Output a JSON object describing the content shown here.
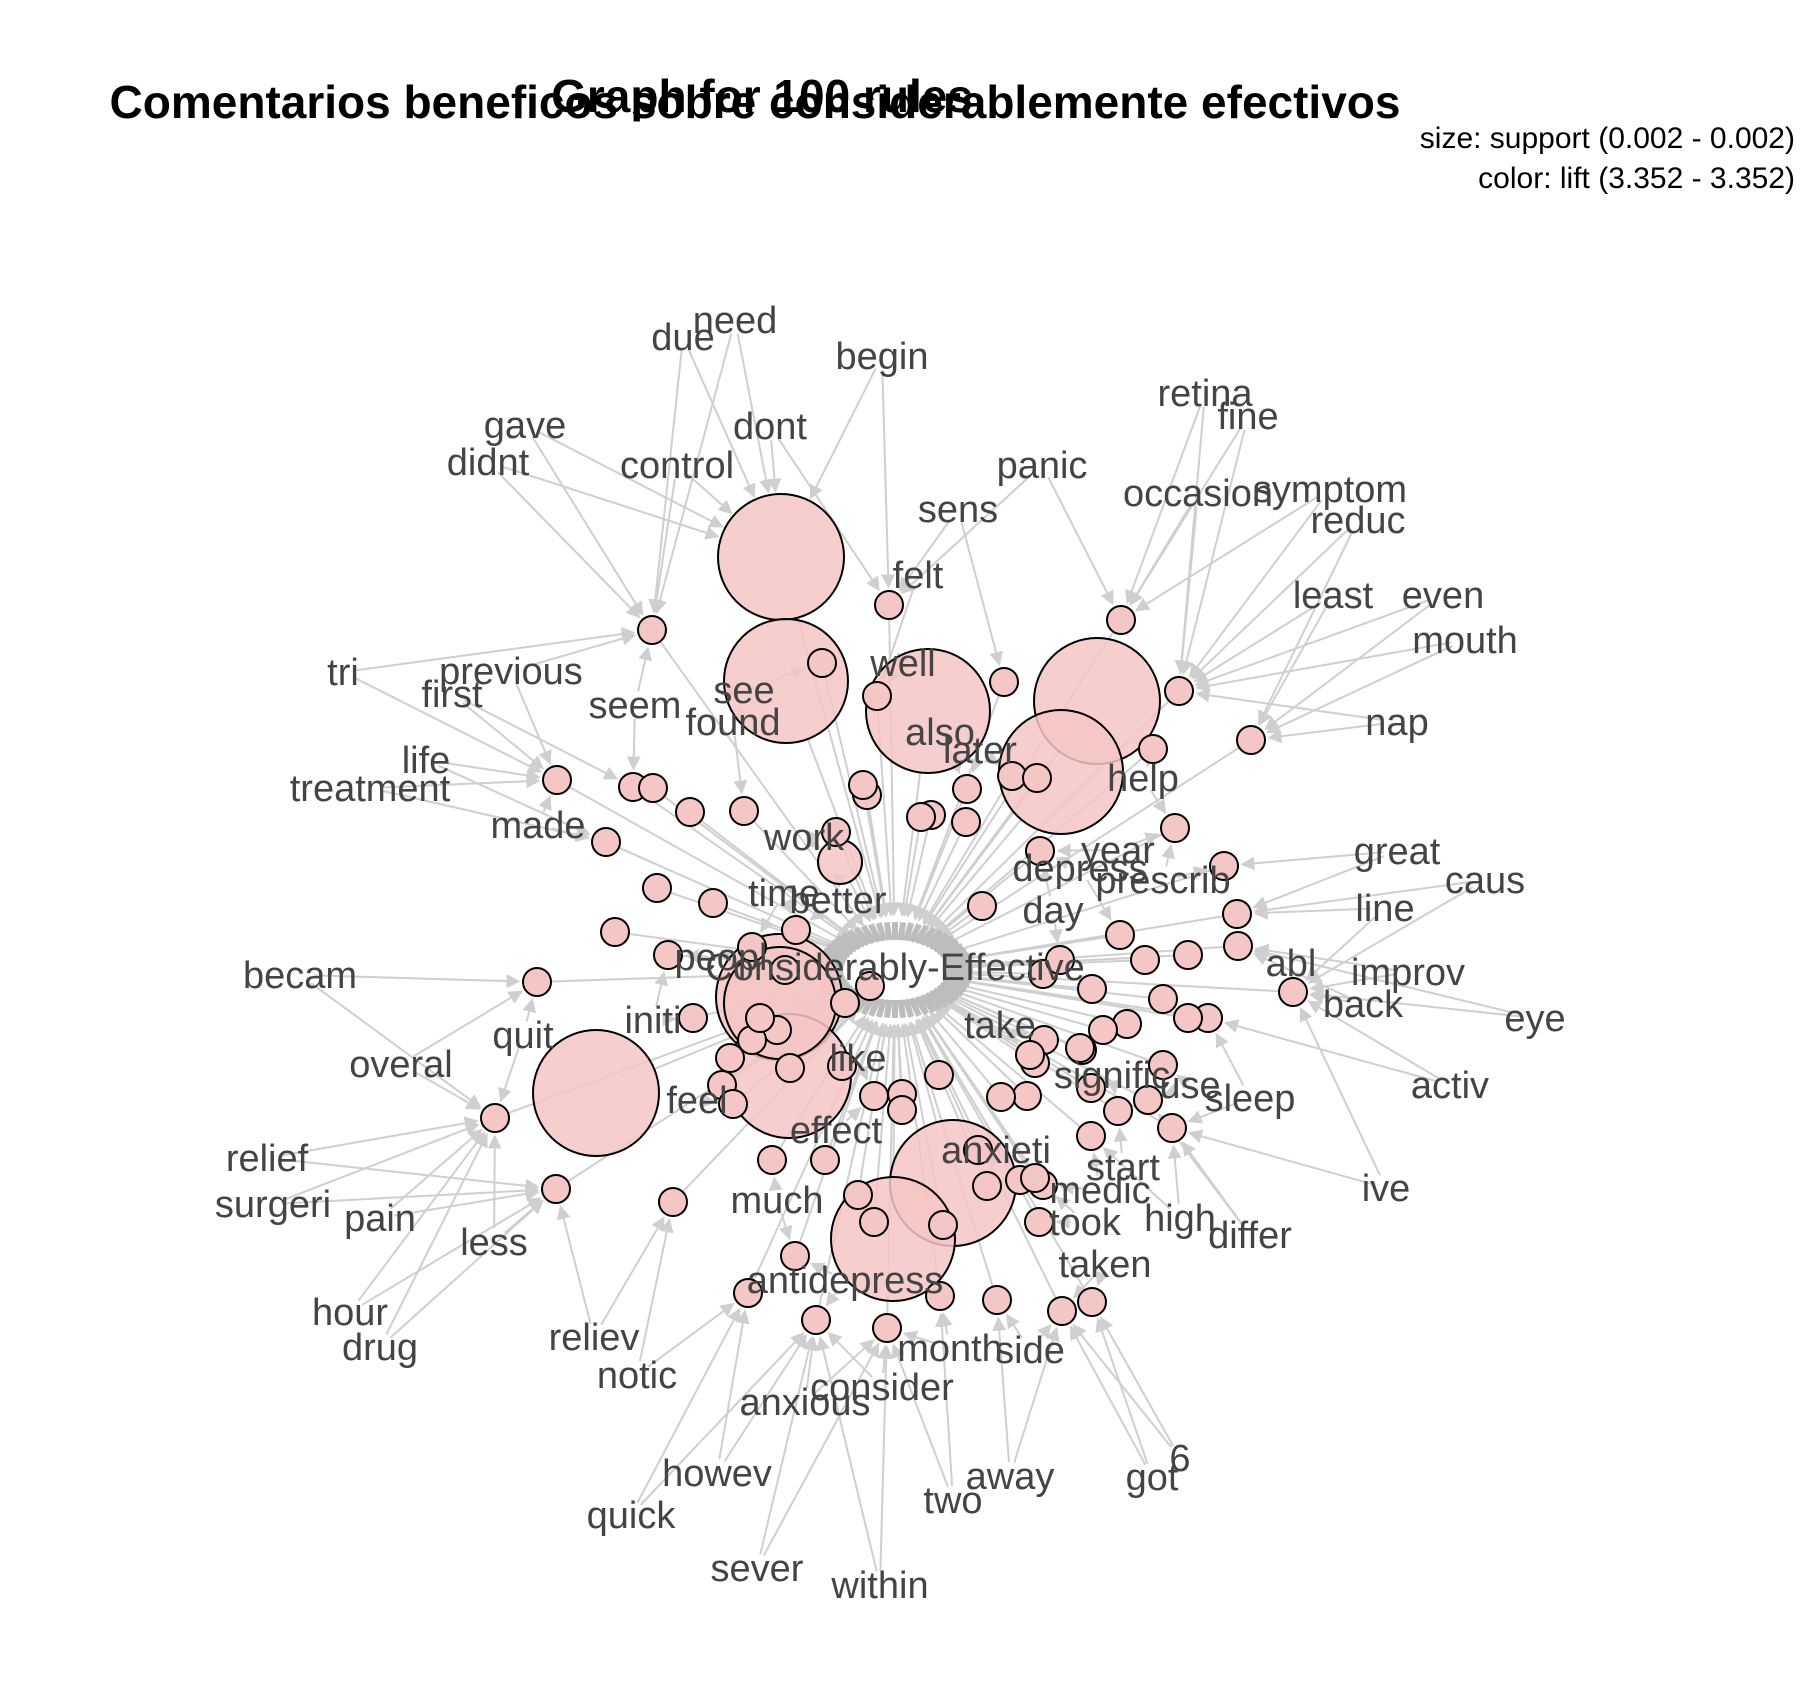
{
  "titles": {
    "main": "Comentarios beneficos sobre considerablemente efectivos",
    "overlay": "Graph for 100 rules"
  },
  "legend": {
    "size": "size: support (0.002 - 0.002)",
    "color": "color: lift (3.352 - 3.352)"
  },
  "colors": {
    "node_fill": "#f4c6c6",
    "node_fill_dark": "#f0a8a8",
    "edge": "#cfcfcf",
    "label": "#444444"
  },
  "center_label": "Considerably-Effective",
  "items": [
    "need",
    "due",
    "begin",
    "dont",
    "gave",
    "didnt",
    "control",
    "retina",
    "fine",
    "panic",
    "occasion",
    "symptom",
    "reduc",
    "sens",
    "felt",
    "least",
    "even",
    "mouth",
    "tri",
    "previous",
    "first",
    "seem",
    "see",
    "found",
    "well",
    "also",
    "later",
    "nap",
    "life",
    "treatment",
    "help",
    "made",
    "work",
    "year",
    "depress",
    "prescrib",
    "great",
    "caus",
    "time",
    "better",
    "day",
    "line",
    "becam",
    "peopl",
    "abl",
    "improv",
    "back",
    "eye",
    "quit",
    "initi",
    "take",
    "overal",
    "like",
    "signific",
    "use",
    "sleep",
    "activ",
    "feel",
    "effect",
    "anxieti",
    "start",
    "relief",
    "ive",
    "surgeri",
    "pain",
    "much",
    "medic",
    "high",
    "differ",
    "less",
    "took",
    "taken",
    "hour",
    "antidepress",
    "drug",
    "reliev",
    "notic",
    "month",
    "side",
    "consider",
    "anxious",
    "howev",
    "away",
    "got",
    "6",
    "two",
    "quick",
    "sever",
    "within"
  ],
  "rules": {
    "count_large": 12,
    "count_small": 100
  }
}
